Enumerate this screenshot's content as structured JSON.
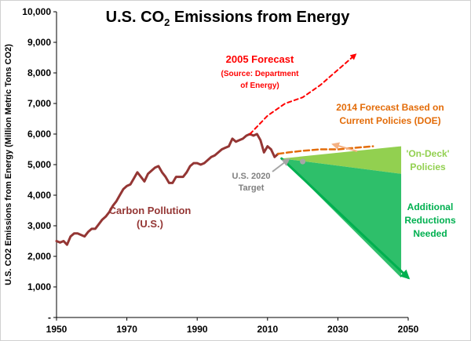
{
  "chart_data": {
    "type": "line",
    "title": "U.S. CO",
    "title_subscript": "2",
    "title_suffix": " Emissions from Energy",
    "ylabel": "U.S. CO2 Emissions from Energy (Million Metric Tons CO2)",
    "xlabel": "",
    "xlim": [
      1950,
      2050
    ],
    "ylim": [
      0,
      10000
    ],
    "x_ticks": [
      1950,
      1970,
      1990,
      2010,
      2030,
      2050
    ],
    "y_ticks": [
      0,
      1000,
      2000,
      3000,
      4000,
      5000,
      6000,
      7000,
      8000,
      9000,
      10000
    ],
    "y_tick_labels": [
      "-",
      "1,000",
      "2,000",
      "3,000",
      "4,000",
      "5,000",
      "6,000",
      "7,000",
      "8,000",
      "9,000",
      "10,000"
    ],
    "gridlines": false,
    "colors": {
      "historical": "#943634",
      "forecast_2005": "#ff0000",
      "forecast_2014": "#e36c09",
      "forecast_2014_arrow": "#f4b183",
      "on_deck": "#92d050",
      "additional": "#2ebf6a",
      "additional_arrow": "#00b050",
      "target": "#a6a6a6",
      "target_text": "#808080"
    },
    "series": [
      {
        "name": "Carbon Pollution (U.S.)",
        "style": "solid",
        "x": [
          1950,
          1951,
          1952,
          1953,
          1954,
          1955,
          1956,
          1957,
          1958,
          1959,
          1960,
          1961,
          1962,
          1963,
          1964,
          1965,
          1966,
          1967,
          1968,
          1969,
          1970,
          1971,
          1972,
          1973,
          1974,
          1975,
          1976,
          1977,
          1978,
          1979,
          1980,
          1981,
          1982,
          1983,
          1984,
          1985,
          1986,
          1987,
          1988,
          1989,
          1990,
          1991,
          1992,
          1993,
          1994,
          1995,
          1996,
          1997,
          1998,
          1999,
          2000,
          2001,
          2002,
          2003,
          2004,
          2005,
          2006,
          2007,
          2008,
          2009,
          2010,
          2011,
          2012,
          2013
        ],
        "values": [
          2500,
          2450,
          2500,
          2380,
          2650,
          2750,
          2750,
          2700,
          2650,
          2800,
          2900,
          2900,
          3050,
          3200,
          3300,
          3450,
          3650,
          3800,
          4000,
          4200,
          4300,
          4350,
          4550,
          4750,
          4600,
          4450,
          4700,
          4800,
          4900,
          4950,
          4750,
          4600,
          4400,
          4400,
          4600,
          4600,
          4600,
          4750,
          4950,
          5050,
          5050,
          5000,
          5050,
          5150,
          5250,
          5300,
          5400,
          5500,
          5550,
          5600,
          5850,
          5750,
          5800,
          5850,
          5950,
          6000,
          5950,
          6000,
          5800,
          5400,
          5600,
          5500,
          5250,
          5350
        ]
      },
      {
        "name": "2005 Forecast",
        "style": "dashed",
        "x": [
          2005,
          2010,
          2015,
          2020,
          2025,
          2030,
          2035
        ],
        "values": [
          6000,
          6600,
          7000,
          7200,
          7600,
          8100,
          8600
        ]
      },
      {
        "name": "2014 Forecast Based on Current Policies (DOE)",
        "style": "dashed",
        "x": [
          2013,
          2016,
          2020,
          2025,
          2030,
          2035,
          2040
        ],
        "values": [
          5350,
          5400,
          5450,
          5500,
          5500,
          5550,
          5600
        ]
      },
      {
        "name": "Additional Reductions Needed",
        "style": "arrow",
        "x": [
          2014,
          2050
        ],
        "values": [
          5200,
          1300
        ]
      }
    ],
    "areas": [
      {
        "name": "'On-Deck' Policies",
        "x": [
          2014,
          2048,
          2048
        ],
        "upper": [
          5200,
          5600,
          5600
        ],
        "lower": [
          5200,
          4700,
          4700
        ]
      },
      {
        "name": "Additional Reductions Needed",
        "x": [
          2014,
          2048
        ],
        "upper": [
          5200,
          4700
        ],
        "lower": [
          5200,
          1300
        ]
      }
    ],
    "target_point": {
      "name": "U.S. 2020 Target",
      "x": 2020,
      "y": 5100
    },
    "annotations": {
      "carbon_pollution_1": "Carbon Pollution",
      "carbon_pollution_2": "(U.S.)",
      "forecast_2005_1": "2005 Forecast",
      "forecast_2005_2": "(Source: Department",
      "forecast_2005_3": "of Energy)",
      "forecast_2014_1": "2014 Forecast Based on",
      "forecast_2014_2": "Current Policies (DOE)",
      "on_deck_1": "'On-Deck'",
      "on_deck_2": "Policies",
      "additional_1": "Additional",
      "additional_2": "Reductions",
      "additional_3": "Needed",
      "target_1": "U.S. 2020",
      "target_2": "Target"
    }
  }
}
